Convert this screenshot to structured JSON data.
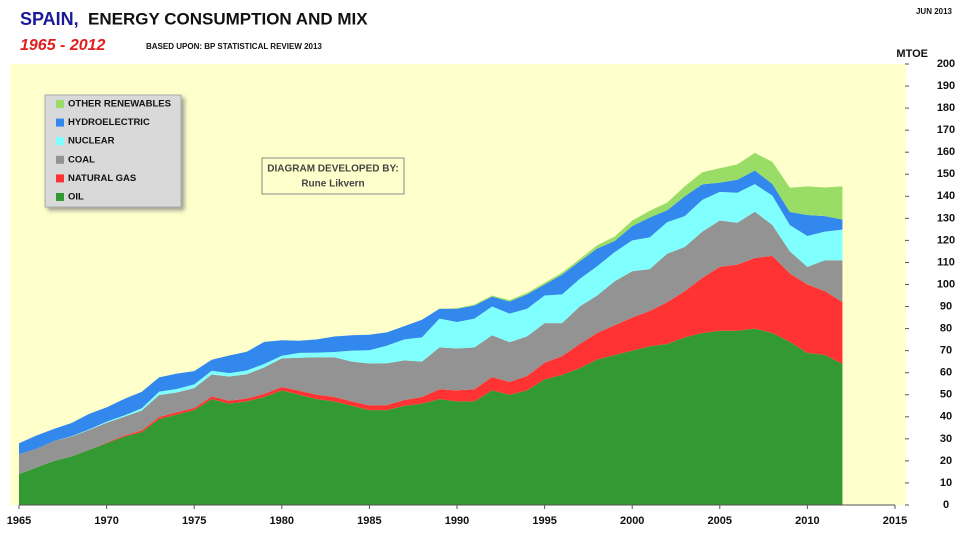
{
  "chart_data": {
    "type": "stacked_area",
    "title_country": "SPAIN,",
    "title": "ENERGY CONSUMPTION AND MIX",
    "subtitle": "1965 - 2012",
    "source": "BASED UPON: BP STATISTICAL REVIEW  2013",
    "date": "JUN 2013",
    "y_label": "MTOE",
    "annotation": [
      "DIAGRAM DEVELOPED BY:",
      "Rune Likvern"
    ],
    "xlim": [
      1965,
      2015
    ],
    "xticks": [
      1965,
      1970,
      1975,
      1980,
      1985,
      1990,
      1995,
      2000,
      2005,
      2010,
      2015
    ],
    "ylim": [
      0,
      200
    ],
    "yticks": [
      0,
      10,
      20,
      30,
      40,
      50,
      60,
      70,
      80,
      90,
      100,
      110,
      120,
      130,
      140,
      150,
      160,
      170,
      180,
      190,
      200
    ],
    "x": [
      1965,
      1966,
      1967,
      1968,
      1969,
      1970,
      1971,
      1972,
      1973,
      1974,
      1975,
      1976,
      1977,
      1978,
      1979,
      1980,
      1981,
      1982,
      1983,
      1984,
      1985,
      1986,
      1987,
      1988,
      1989,
      1990,
      1991,
      1992,
      1993,
      1994,
      1995,
      1996,
      1997,
      1998,
      1999,
      2000,
      2001,
      2002,
      2003,
      2004,
      2005,
      2006,
      2007,
      2008,
      2009,
      2010,
      2011,
      2012
    ],
    "series": [
      {
        "name": "OIL",
        "color": "#339933",
        "values": [
          14,
          17,
          20,
          22,
          25,
          28,
          31,
          33,
          39,
          41,
          43,
          48,
          46,
          47,
          49,
          52,
          50,
          48,
          47,
          45,
          43,
          43,
          45,
          46,
          48,
          47,
          47,
          52,
          50,
          52,
          57,
          59,
          62,
          66,
          68,
          70,
          72,
          73,
          76,
          78,
          79,
          79,
          80,
          78,
          74,
          69,
          68,
          64
        ]
      },
      {
        "name": "NATURAL GAS",
        "color": "#ff3333",
        "values": [
          0,
          0,
          0,
          0,
          0,
          0.3,
          0.5,
          0.8,
          0.9,
          1,
          1,
          1.2,
          1.3,
          1.3,
          1.4,
          1.5,
          1.8,
          2,
          2,
          2,
          2.2,
          2.3,
          2.6,
          3,
          4.5,
          5,
          5.5,
          6,
          5.8,
          6.5,
          7.5,
          8.5,
          11,
          12,
          13.5,
          15,
          16,
          19,
          21,
          25,
          29,
          30,
          32,
          35,
          31,
          31,
          29,
          28
        ]
      },
      {
        "name": "COAL",
        "color": "#939393",
        "values": [
          9,
          8.5,
          9,
          9,
          9,
          9,
          8.5,
          9,
          10,
          9,
          9,
          10,
          11,
          11,
          12,
          13,
          15,
          17,
          18,
          18,
          19,
          19,
          18,
          16,
          19,
          19,
          19,
          19,
          18,
          18,
          18,
          15,
          17,
          17,
          20,
          21,
          19,
          22,
          20,
          21,
          21,
          19,
          21,
          14,
          10,
          8,
          14,
          19
        ]
      },
      {
        "name": "NUCLEAR",
        "color": "#80ffff",
        "values": [
          0,
          0,
          0,
          0.2,
          0.3,
          0.5,
          0.6,
          1,
          1.5,
          1.6,
          1.7,
          1.7,
          1.5,
          1.7,
          1.6,
          1.2,
          2.2,
          2.1,
          2.4,
          5,
          6,
          8,
          9.5,
          11,
          13,
          12,
          13,
          13,
          13,
          12.5,
          12.5,
          13,
          12.5,
          13.3,
          13.2,
          14,
          14.4,
          14.3,
          14,
          14.4,
          13,
          13.6,
          12.5,
          13.3,
          11.9,
          14,
          13,
          13.9
        ]
      },
      {
        "name": "HYDROELECTRIC",
        "color": "#3388ee",
        "values": [
          5,
          6,
          5.5,
          6,
          7,
          6.5,
          7.5,
          7.5,
          6.5,
          7,
          6,
          5,
          8,
          8.5,
          10,
          7,
          5.5,
          6,
          7,
          7,
          7,
          6,
          6,
          8,
          4.5,
          6,
          6,
          4.5,
          5.5,
          6.5,
          5,
          9,
          8,
          8,
          5,
          6.5,
          9,
          5.4,
          9,
          7,
          4.2,
          5.9,
          6.2,
          5.3,
          6,
          9.5,
          7,
          4.6
        ]
      },
      {
        "name": "OTHER RENEWABLES",
        "color": "#99dd66",
        "values": [
          0,
          0,
          0,
          0,
          0,
          0,
          0,
          0,
          0,
          0,
          0,
          0,
          0,
          0,
          0,
          0,
          0,
          0,
          0,
          0,
          0,
          0,
          0,
          0,
          0,
          0.3,
          0.4,
          0.5,
          0.6,
          0.7,
          0.8,
          0.9,
          1,
          1.5,
          2,
          2.5,
          3,
          3.5,
          4.5,
          5.5,
          6.5,
          7,
          8,
          10,
          11,
          13,
          13,
          15
        ]
      }
    ]
  }
}
